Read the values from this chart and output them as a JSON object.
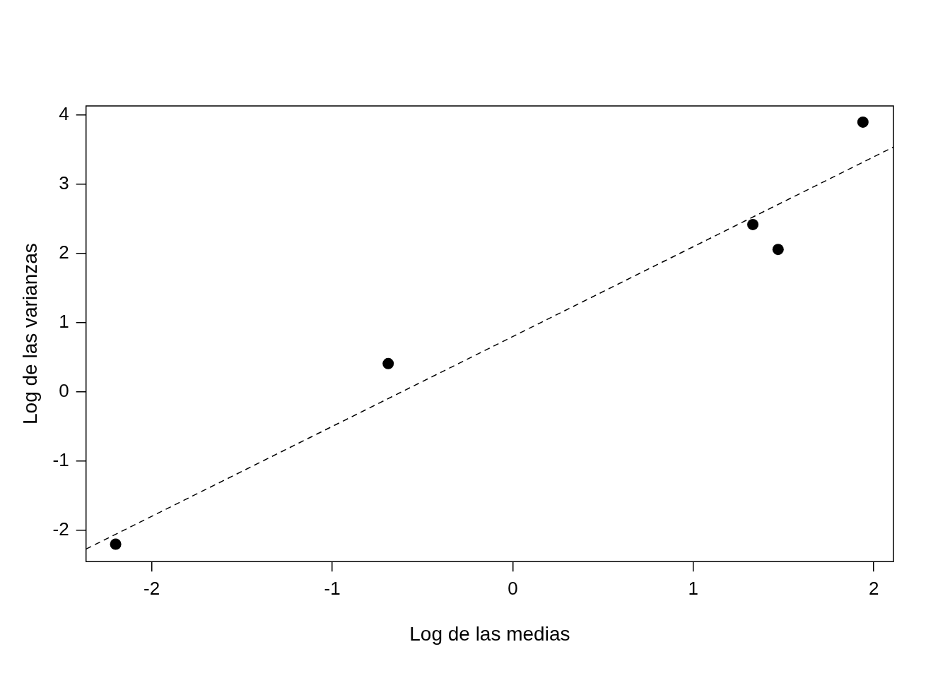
{
  "chart_data": {
    "type": "scatter",
    "xlabel": "Log de las medias",
    "ylabel": "Log de las varianzas",
    "xlim": [
      -2.364,
      2.109
    ],
    "ylim": [
      -2.452,
      4.134
    ],
    "xticks": [
      -2,
      -1,
      0,
      1,
      2
    ],
    "yticks": [
      -2,
      -1,
      0,
      1,
      2,
      3,
      4
    ],
    "grid": false,
    "legend": false,
    "series": [
      {
        "color": "#000000",
        "marker": "circle",
        "x": [
          -2.2,
          -0.69,
          1.33,
          1.47,
          1.94
        ],
        "values": [
          -2.2,
          0.41,
          2.42,
          2.06,
          3.9
        ]
      },
      {
        "type": "line",
        "color": "#000000",
        "marker": "none",
        "line_style": "dashed",
        "x": [
          -2.364,
          2.109
        ],
        "values": [
          -2.27,
          3.54
        ]
      }
    ]
  }
}
